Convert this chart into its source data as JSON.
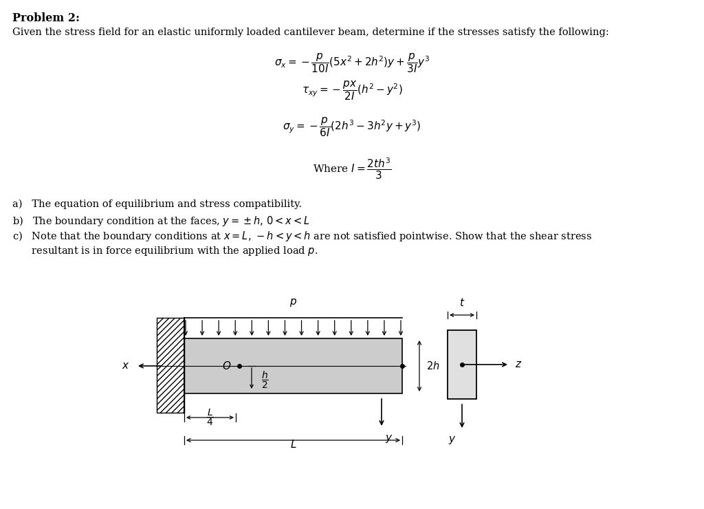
{
  "title": "Problem 2:",
  "intro": "Given the stress field for an elastic uniformly loaded cantilever beam, determine if the stresses satisfy the following:",
  "eq1": "$\\sigma_x = -\\dfrac{p}{10I}(5x^2 + 2h^2)y + \\dfrac{p}{3I}y^3$",
  "eq2": "$\\tau_{xy} = -\\dfrac{px}{2I}(h^2 - y^2)$",
  "eq3": "$\\sigma_y = -\\dfrac{p}{6I}(2h^3 - 3h^2y + y^3)$",
  "eq4": "Where $I = \\dfrac{2th^3}{3}$",
  "item_a": "a)   The equation of equilibrium and stress compatibility.",
  "item_b": "b)   The boundary condition at the faces, $y = \\pm h,\\, 0 < x < L$",
  "item_c_1": "c)   Note that the boundary conditions at $x = L,\\,-h < y < h$ are not satisfied pointwise. Show that the shear stress",
  "item_c_2": "      resultant is in force equilibrium with the applied load $p$.",
  "bg_color": "#ffffff",
  "text_color": "#000000"
}
